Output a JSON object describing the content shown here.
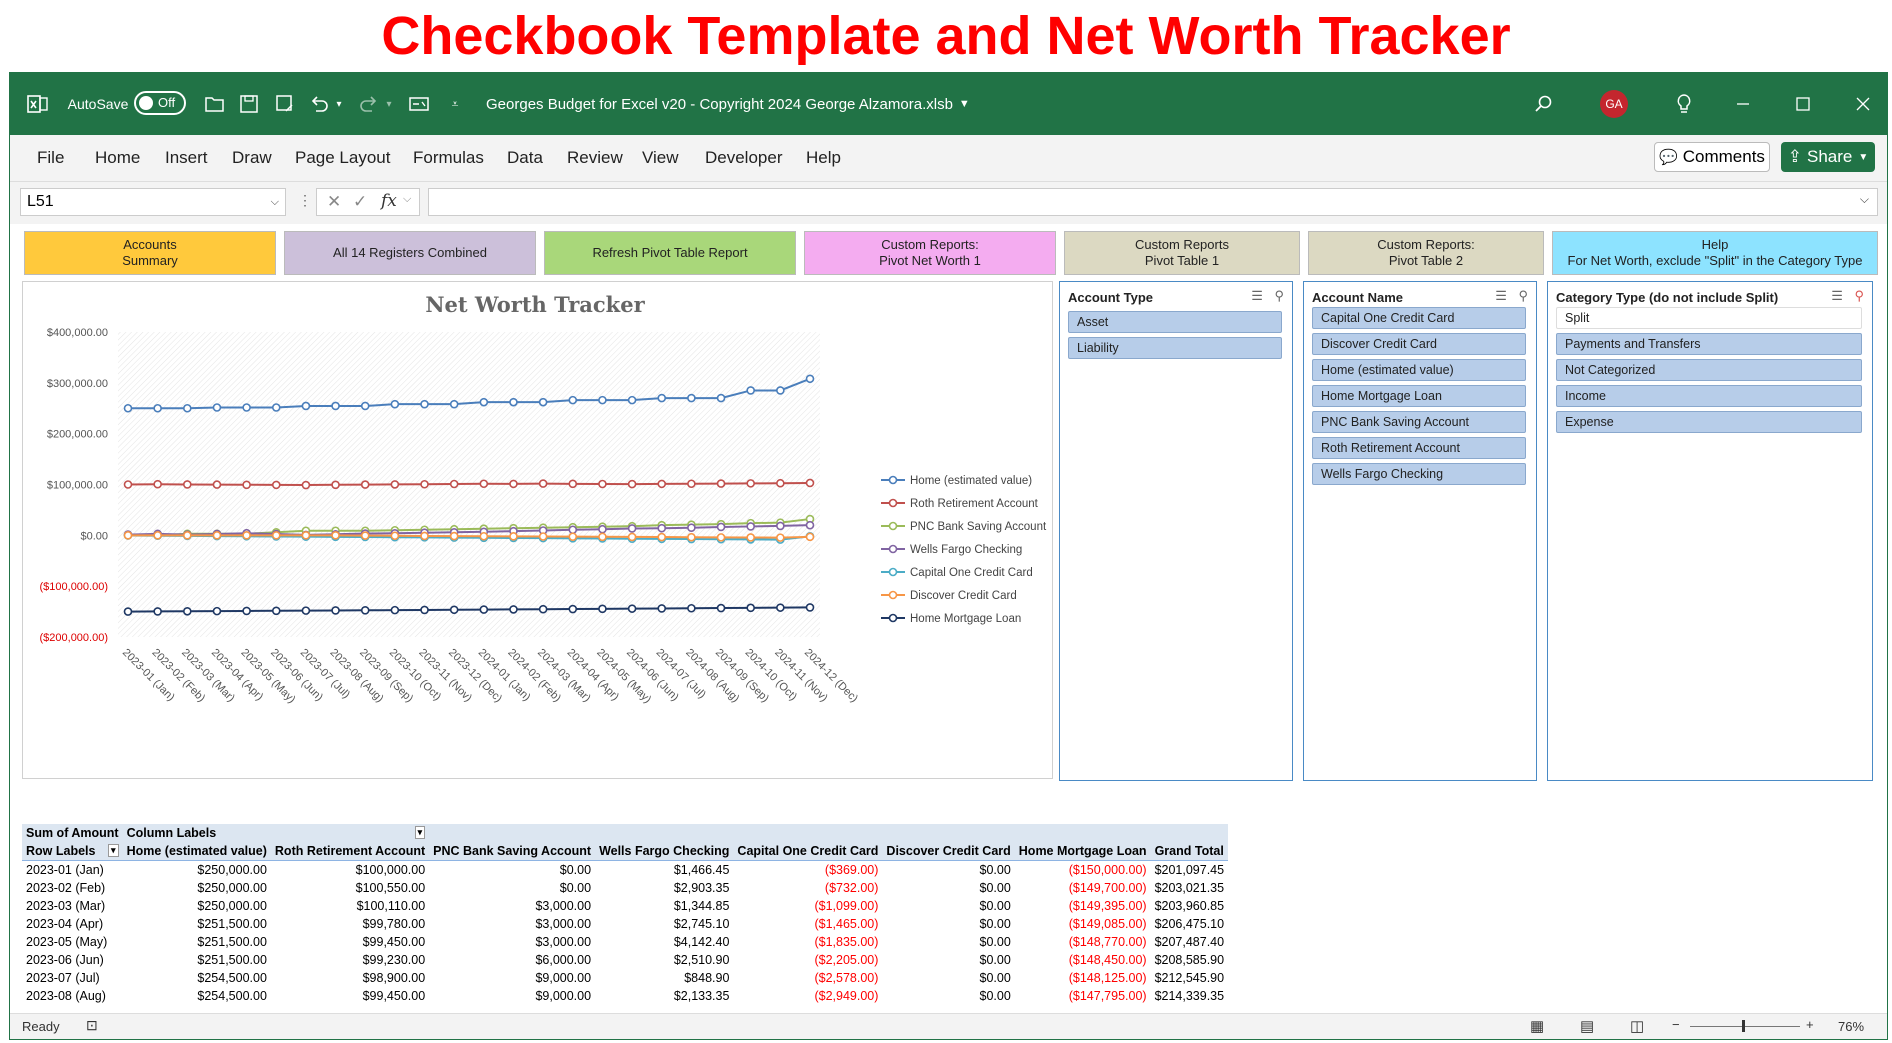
{
  "banner_title": "Checkbook Template and Net Worth Tracker",
  "window": {
    "autosave_label": "AutoSave",
    "autosave_state": "Off",
    "file_title": "Georges Budget for Excel v20 - Copyright 2024 George Alzamora.xlsb",
    "user_initials": "GA",
    "accent": "#217346"
  },
  "ribbon": {
    "tabs": [
      "File",
      "Home",
      "Insert",
      "Draw",
      "Page Layout",
      "Formulas",
      "Data",
      "Review",
      "View",
      "Developer",
      "Help"
    ],
    "comments_label": "Comments",
    "share_label": "Share"
  },
  "formula_bar": {
    "name_box": "L51",
    "fx_label": "fx",
    "formula": ""
  },
  "macro_buttons": [
    {
      "label": "Accounts\nSummary",
      "color": "#ffc93c"
    },
    {
      "label": "All 14 Registers Combined",
      "color": "#ccc0da"
    },
    {
      "label": "Refresh Pivot Table Report",
      "color": "#a9d77a"
    },
    {
      "label": "Custom Reports:\nPivot Net Worth 1",
      "color": "#f4acf0"
    },
    {
      "label": "Custom Reports\nPivot Table 1",
      "color": "#dcd9c2"
    },
    {
      "label": "Custom Reports:\nPivot Table 2",
      "color": "#dcd9c2"
    },
    {
      "label": "Help\nFor Net Worth, exclude \"Split\" in the Category Type",
      "color": "#8de3ff"
    }
  ],
  "chart_data": {
    "type": "line",
    "title": "Net Worth Tracker",
    "categories": [
      "2023-01 (Jan)",
      "2023-02 (Feb)",
      "2023-03 (Mar)",
      "2023-04 (Apr)",
      "2023-05 (May)",
      "2023-06 (Jun)",
      "2023-07 (Jul)",
      "2023-08 (Aug)",
      "2023-09 (Sep)",
      "2023-10 (Oct)",
      "2023-11 (Nov)",
      "2023-12 (Dec)",
      "2024-01 (Jan)",
      "2024-02 (Feb)",
      "2024-03 (Mar)",
      "2024-04 (Apr)",
      "2024-05 (May)",
      "2024-06 (Jun)",
      "2024-07 (Jul)",
      "2024-08 (Aug)",
      "2024-09 (Sep)",
      "2024-10 (Oct)",
      "2024-11 (Nov)",
      "2024-12 (Dec)"
    ],
    "y_ticks": [
      "$400,000.00",
      "$300,000.00",
      "$200,000.00",
      "$100,000.00",
      "$0.00",
      "($100,000.00)",
      "($200,000.00)"
    ],
    "ylim": [
      -200000,
      400000
    ],
    "legend_position": "right",
    "series": [
      {
        "name": "Home (estimated value)",
        "color": "#4a7ebb",
        "values": [
          250000,
          250000,
          250000,
          251500,
          251500,
          251500,
          254500,
          254500,
          254500,
          258000,
          258000,
          258000,
          262000,
          262000,
          262000,
          266000,
          266000,
          266000,
          270000,
          270000,
          270000,
          285000,
          285000,
          308000
        ]
      },
      {
        "name": "Roth Retirement Account",
        "color": "#c0504d",
        "values": [
          100000,
          100550,
          100110,
          99780,
          99450,
          99230,
          98900,
          99450,
          99800,
          100200,
          100500,
          101000,
          101500,
          101200,
          101800,
          101300,
          101000,
          100800,
          101200,
          101500,
          101800,
          102200,
          102500,
          103000
        ]
      },
      {
        "name": "PNC Bank Saving Account",
        "color": "#9bbb59",
        "values": [
          0,
          0,
          3000,
          3000,
          3000,
          6000,
          9000,
          9000,
          9000,
          10000,
          11000,
          12000,
          13000,
          14000,
          15000,
          16000,
          17000,
          18000,
          20000,
          21000,
          22000,
          24000,
          25000,
          32000
        ]
      },
      {
        "name": "Wells Fargo Checking",
        "color": "#8064a2",
        "values": [
          1466.45,
          2903.35,
          1344.85,
          2745.1,
          4142.4,
          2510.9,
          848.9,
          2133.35,
          3500,
          4000,
          5200,
          6000,
          7000,
          8200,
          9500,
          11000,
          12000,
          13500,
          14000,
          15000,
          16500,
          17500,
          18500,
          20000
        ]
      },
      {
        "name": "Capital One Credit Card",
        "color": "#4bacc6",
        "values": [
          -369,
          -732,
          -1099,
          -1465,
          -1835,
          -2205,
          -2578,
          -2949,
          -3300,
          -3700,
          -4000,
          -4400,
          -4800,
          -5200,
          -5500,
          -5900,
          -6200,
          -6600,
          -7000,
          -7300,
          -7700,
          -8000,
          -8400,
          -2000
        ]
      },
      {
        "name": "Discover Credit Card",
        "color": "#f79646",
        "values": [
          0,
          0,
          0,
          0,
          0,
          0,
          0,
          0,
          -500,
          -800,
          -1200,
          -1500,
          -1800,
          -2000,
          -2300,
          -2600,
          -2900,
          -3100,
          -3400,
          -3700,
          -4000,
          -4200,
          -4500,
          -3000
        ]
      },
      {
        "name": "Home Mortgage Loan",
        "color": "#1f3864",
        "values": [
          -150000,
          -149700,
          -149395,
          -149085,
          -148770,
          -148450,
          -148125,
          -147795,
          -147460,
          -147120,
          -146775,
          -146425,
          -146070,
          -145710,
          -145345,
          -144975,
          -144600,
          -144220,
          -143835,
          -143445,
          -143050,
          -142650,
          -142245,
          -141835
        ]
      }
    ]
  },
  "slicers": {
    "account_type": {
      "title": "Account Type",
      "items": [
        "Asset",
        "Liability"
      ]
    },
    "account_name": {
      "title": "Account Name",
      "items": [
        "Capital One Credit Card",
        "Discover Credit Card",
        "Home (estimated value)",
        "Home Mortgage Loan",
        "PNC Bank Saving Account",
        "Roth Retirement Account",
        "Wells Fargo Checking"
      ]
    },
    "category_type": {
      "title": "Category Type (do not include Split)",
      "items": [
        "Split",
        "Payments and Transfers",
        "Not Categorized",
        "Income",
        "Expense"
      ],
      "unselected": [
        0
      ]
    }
  },
  "pivot": {
    "corner": "Sum of Amount",
    "column_labels": "Column Labels",
    "row_labels": "Row Labels",
    "columns": [
      "Home (estimated value)",
      "Roth Retirement Account",
      "PNC Bank Saving Account",
      "Wells Fargo Checking",
      "Capital One Credit Card",
      "Discover Credit Card",
      "Home Mortgage Loan",
      "Grand Total"
    ],
    "rows": [
      [
        "2023-01 (Jan)",
        "$250,000.00",
        "$100,000.00",
        "$0.00",
        "$1,466.45",
        "($369.00)",
        "$0.00",
        "($150,000.00)",
        "$201,097.45"
      ],
      [
        "2023-02 (Feb)",
        "$250,000.00",
        "$100,550.00",
        "$0.00",
        "$2,903.35",
        "($732.00)",
        "$0.00",
        "($149,700.00)",
        "$203,021.35"
      ],
      [
        "2023-03 (Mar)",
        "$250,000.00",
        "$100,110.00",
        "$3,000.00",
        "$1,344.85",
        "($1,099.00)",
        "$0.00",
        "($149,395.00)",
        "$203,960.85"
      ],
      [
        "2023-04 (Apr)",
        "$251,500.00",
        "$99,780.00",
        "$3,000.00",
        "$2,745.10",
        "($1,465.00)",
        "$0.00",
        "($149,085.00)",
        "$206,475.10"
      ],
      [
        "2023-05 (May)",
        "$251,500.00",
        "$99,450.00",
        "$3,000.00",
        "$4,142.40",
        "($1,835.00)",
        "$0.00",
        "($148,770.00)",
        "$207,487.40"
      ],
      [
        "2023-06 (Jun)",
        "$251,500.00",
        "$99,230.00",
        "$6,000.00",
        "$2,510.90",
        "($2,205.00)",
        "$0.00",
        "($148,450.00)",
        "$208,585.90"
      ],
      [
        "2023-07 (Jul)",
        "$254,500.00",
        "$98,900.00",
        "$9,000.00",
        "$848.90",
        "($2,578.00)",
        "$0.00",
        "($148,125.00)",
        "$212,545.90"
      ],
      [
        "2023-08 (Aug)",
        "$254,500.00",
        "$99,450.00",
        "$9,000.00",
        "$2,133.35",
        "($2,949.00)",
        "$0.00",
        "($147,795.00)",
        "$214,339.35"
      ]
    ]
  },
  "status": {
    "ready": "Ready",
    "zoom": "76%"
  }
}
